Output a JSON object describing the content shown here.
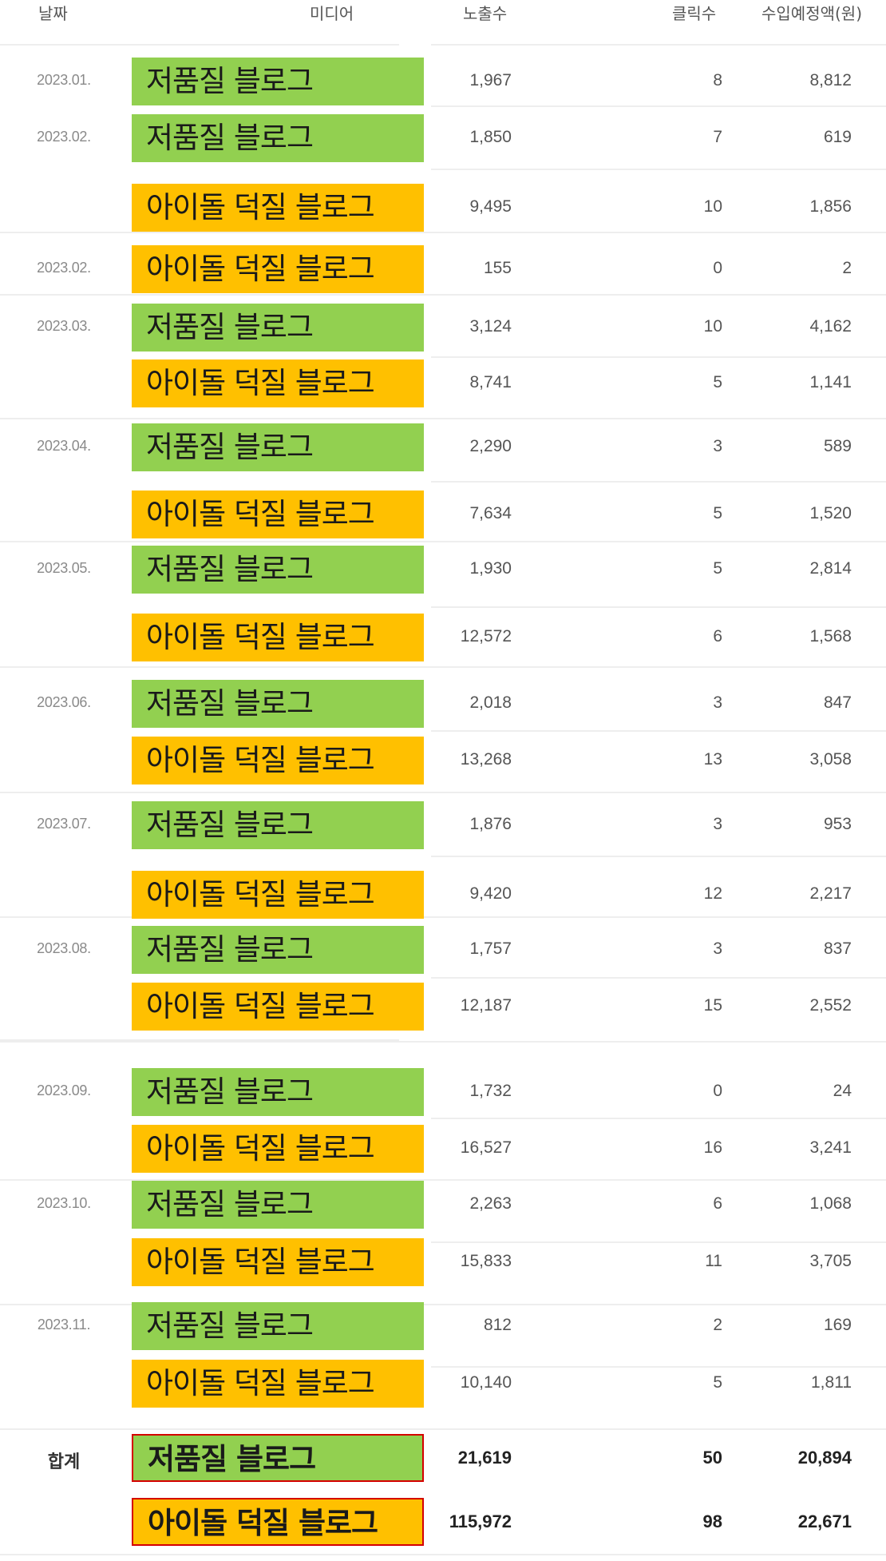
{
  "header": {
    "date": "날짜",
    "media": "미디어",
    "impressions": "노출수",
    "clicks": "클릭수",
    "revenue": "수입예정액(원)"
  },
  "colors": {
    "low_quality_blog": "#92d050",
    "idol_blog": "#ffc000",
    "total_border": "#d40000"
  },
  "rows": [
    {
      "date": "2023.01.",
      "media": "저품질 블로그",
      "kind": "low",
      "impressions": "1,967",
      "clicks": "8",
      "revenue": "8,812"
    },
    {
      "date": "2023.02.",
      "media": "저품질 블로그",
      "kind": "low",
      "impressions": "1,850",
      "clicks": "7",
      "revenue": "619"
    },
    {
      "date": "",
      "media": "아이돌 덕질 블로그",
      "kind": "idol",
      "impressions": "9,495",
      "clicks": "10",
      "revenue": "1,856"
    },
    {
      "date": "2023.02.",
      "media": "아이돌 덕질 블로그",
      "kind": "idol",
      "impressions": "155",
      "clicks": "0",
      "revenue": "2"
    },
    {
      "date": "2023.03.",
      "media": "저품질 블로그",
      "kind": "low",
      "impressions": "3,124",
      "clicks": "10",
      "revenue": "4,162"
    },
    {
      "date": "",
      "media": "아이돌 덕질 블로그",
      "kind": "idol",
      "impressions": "8,741",
      "clicks": "5",
      "revenue": "1,141"
    },
    {
      "date": "2023.04.",
      "media": "저품질 블로그",
      "kind": "low",
      "impressions": "2,290",
      "clicks": "3",
      "revenue": "589"
    },
    {
      "date": "",
      "media": "아이돌 덕질 블로그",
      "kind": "idol",
      "impressions": "7,634",
      "clicks": "5",
      "revenue": "1,520"
    },
    {
      "date": "2023.05.",
      "media": "저품질 블로그",
      "kind": "low",
      "impressions": "1,930",
      "clicks": "5",
      "revenue": "2,814"
    },
    {
      "date": "",
      "media": "아이돌 덕질 블로그",
      "kind": "idol",
      "impressions": "12,572",
      "clicks": "6",
      "revenue": "1,568"
    },
    {
      "date": "2023.06.",
      "media": "저품질 블로그",
      "kind": "low",
      "impressions": "2,018",
      "clicks": "3",
      "revenue": "847"
    },
    {
      "date": "",
      "media": "아이돌 덕질 블로그",
      "kind": "idol",
      "impressions": "13,268",
      "clicks": "13",
      "revenue": "3,058"
    },
    {
      "date": "2023.07.",
      "media": "저품질 블로그",
      "kind": "low",
      "impressions": "1,876",
      "clicks": "3",
      "revenue": "953"
    },
    {
      "date": "",
      "media": "아이돌 덕질 블로그",
      "kind": "idol",
      "impressions": "9,420",
      "clicks": "12",
      "revenue": "2,217"
    },
    {
      "date": "2023.08.",
      "media": "저품질 블로그",
      "kind": "low",
      "impressions": "1,757",
      "clicks": "3",
      "revenue": "837"
    },
    {
      "date": "",
      "media": "아이돌 덕질 블로그",
      "kind": "idol",
      "impressions": "12,187",
      "clicks": "15",
      "revenue": "2,552"
    },
    {
      "date": "2023.09.",
      "media": "저품질 블로그",
      "kind": "low",
      "impressions": "1,732",
      "clicks": "0",
      "revenue": "24"
    },
    {
      "date": "",
      "media": "아이돌 덕질 블로그",
      "kind": "idol",
      "impressions": "16,527",
      "clicks": "16",
      "revenue": "3,241"
    },
    {
      "date": "2023.10.",
      "media": "저품질 블로그",
      "kind": "low",
      "impressions": "2,263",
      "clicks": "6",
      "revenue": "1,068"
    },
    {
      "date": "",
      "media": "아이돌 덕질 블로그",
      "kind": "idol",
      "impressions": "15,833",
      "clicks": "11",
      "revenue": "3,705"
    },
    {
      "date": "2023.11.",
      "media": "저품질 블로그",
      "kind": "low",
      "impressions": "812",
      "clicks": "2",
      "revenue": "169"
    },
    {
      "date": "",
      "media": "아이돌 덕질 블로그",
      "kind": "idol",
      "impressions": "10,140",
      "clicks": "5",
      "revenue": "1,811"
    }
  ],
  "totals": {
    "label": "합계",
    "rows": [
      {
        "media": "저품질 블로그",
        "kind": "low",
        "impressions": "21,619",
        "clicks": "50",
        "revenue": "20,894"
      },
      {
        "media": "아이돌 덕질 블로그",
        "kind": "idol",
        "impressions": "115,972",
        "clicks": "98",
        "revenue": "22,671"
      }
    ]
  }
}
